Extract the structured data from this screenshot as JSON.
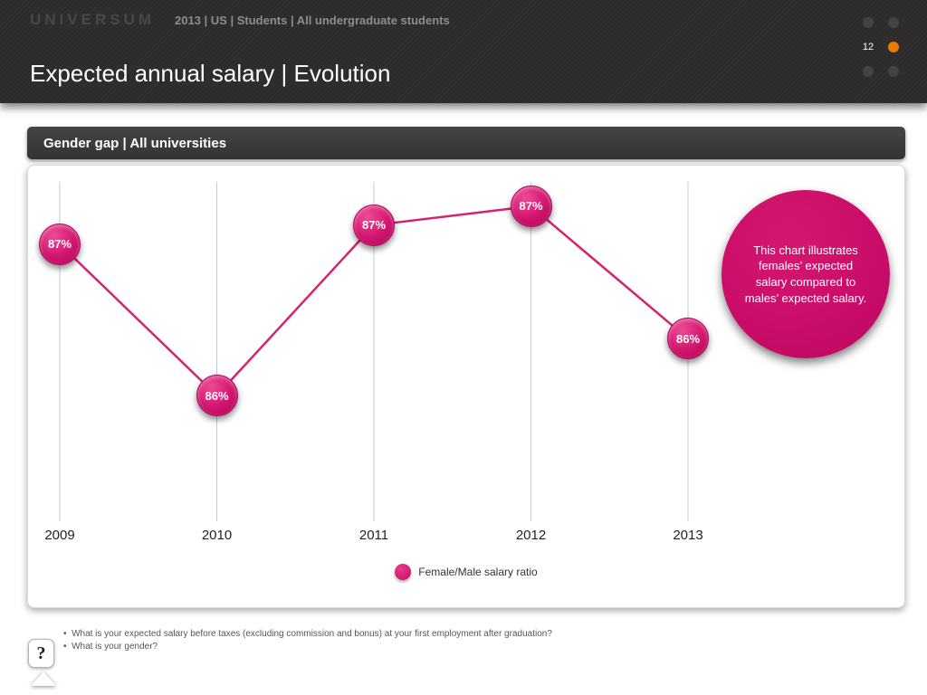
{
  "header": {
    "logo": "UNIVERSUM",
    "breadcrumb": "2013 | US | Students | All undergraduate students",
    "title": "Expected annual salary | Evolution",
    "page_number": "12"
  },
  "section": {
    "heading": "Gender gap | All universities"
  },
  "chart_data": {
    "type": "line",
    "title": "Gender gap | All universities",
    "categories": [
      "2009",
      "2010",
      "2011",
      "2012",
      "2013"
    ],
    "series": [
      {
        "name": "Female/Male salary ratio",
        "values": [
          86.8,
          86.0,
          86.9,
          87.0,
          86.3
        ],
        "labels": [
          "87%",
          "86%",
          "87%",
          "87%",
          "86%"
        ]
      }
    ],
    "ylim": [
      85.8,
      87.2
    ],
    "grid": "vertical-only",
    "legend_position": "bottom-center",
    "line_color": "#d4246e",
    "marker_color": "#d1146f",
    "gridline_color": "#c9c9c9"
  },
  "annotation": {
    "text": "This chart illustrates females’ expected salary compared to males’ expected salary."
  },
  "footnotes": [
    "What is your expected salary before taxes (excluding commission and bonus) at your first employment after graduation?",
    "What is your gender?"
  ],
  "help_button": "?",
  "colors": {
    "accent_pink": "#d1146f",
    "accent_orange": "#e87a00",
    "header_bg": "#2d2b2c"
  }
}
